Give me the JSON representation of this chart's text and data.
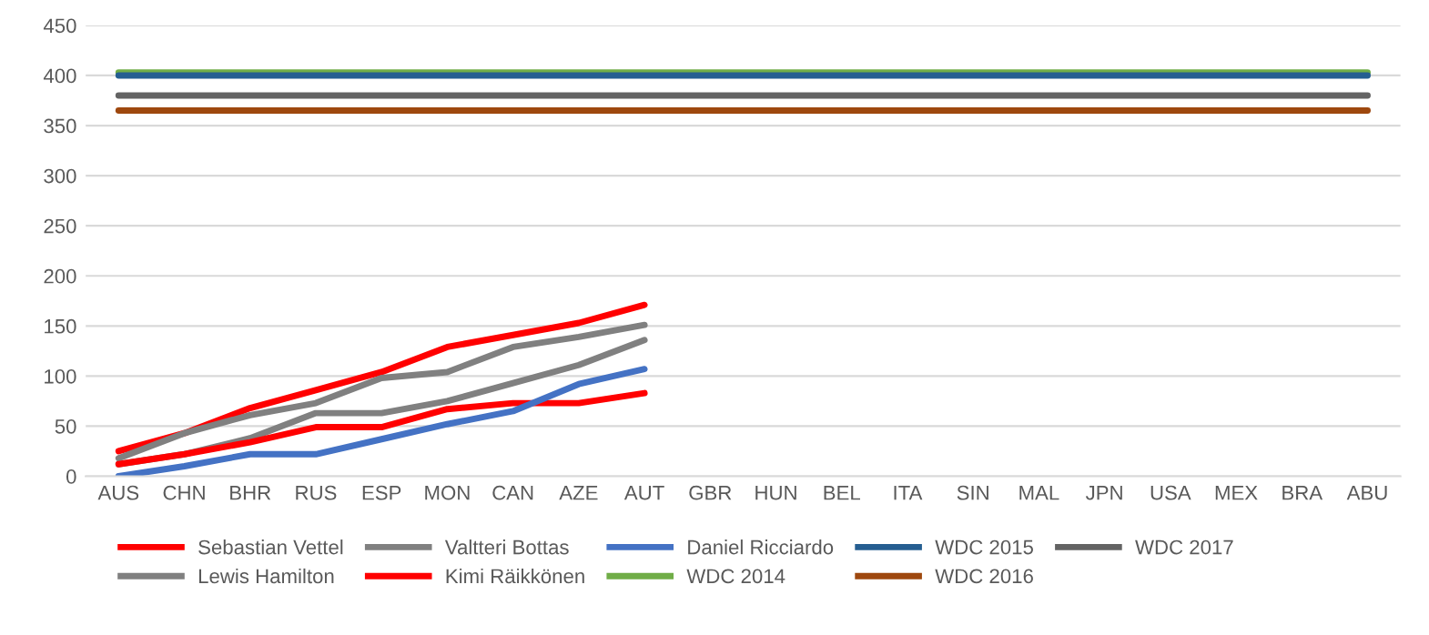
{
  "chart_data": {
    "type": "line",
    "categories": [
      "AUS",
      "CHN",
      "BHR",
      "RUS",
      "ESP",
      "MON",
      "CAN",
      "AZE",
      "AUT",
      "GBR",
      "HUN",
      "BEL",
      "ITA",
      "SIN",
      "MAL",
      "JPN",
      "USA",
      "MEX",
      "BRA",
      "ABU"
    ],
    "series": [
      {
        "name": "Sebastian Vettel",
        "color": "#ff0000",
        "values": [
          25,
          43,
          68,
          86,
          104,
          129,
          141,
          153,
          171,
          null,
          null,
          null,
          null,
          null,
          null,
          null,
          null,
          null,
          null,
          null
        ]
      },
      {
        "name": "Lewis Hamilton",
        "color": "#808080",
        "values": [
          18,
          43,
          61,
          73,
          98,
          104,
          129,
          139,
          151,
          null,
          null,
          null,
          null,
          null,
          null,
          null,
          null,
          null,
          null,
          null
        ]
      },
      {
        "name": "Valtteri Bottas",
        "color": "#808080",
        "values": [
          12,
          22,
          38,
          63,
          63,
          75,
          93,
          111,
          136,
          null,
          null,
          null,
          null,
          null,
          null,
          null,
          null,
          null,
          null,
          null
        ]
      },
      {
        "name": "Kimi Räikkönen",
        "color": "#ff0000",
        "values": [
          12,
          22,
          34,
          49,
          49,
          67,
          73,
          73,
          83,
          null,
          null,
          null,
          null,
          null,
          null,
          null,
          null,
          null,
          null,
          null
        ]
      },
      {
        "name": "Daniel Ricciardo",
        "color": "#4472c4",
        "values": [
          0,
          10,
          22,
          22,
          37,
          52,
          65,
          92,
          107,
          null,
          null,
          null,
          null,
          null,
          null,
          null,
          null,
          null,
          null,
          null
        ]
      },
      {
        "name": "WDC 2014",
        "color": "#70ad47",
        "values": [
          403,
          403,
          403,
          403,
          403,
          403,
          403,
          403,
          403,
          403,
          403,
          403,
          403,
          403,
          403,
          403,
          403,
          403,
          403,
          403
        ]
      },
      {
        "name": "WDC 2015",
        "color": "#255e91",
        "values": [
          400,
          400,
          400,
          400,
          400,
          400,
          400,
          400,
          400,
          400,
          400,
          400,
          400,
          400,
          400,
          400,
          400,
          400,
          400,
          400
        ]
      },
      {
        "name": "WDC 2016",
        "color": "#9e480e",
        "values": [
          365,
          365,
          365,
          365,
          365,
          365,
          365,
          365,
          365,
          365,
          365,
          365,
          365,
          365,
          365,
          365,
          365,
          365,
          365,
          365
        ]
      },
      {
        "name": "WDC 2017",
        "color": "#636363",
        "values": [
          380,
          380,
          380,
          380,
          380,
          380,
          380,
          380,
          380,
          380,
          380,
          380,
          380,
          380,
          380,
          380,
          380,
          380,
          380,
          380
        ]
      }
    ],
    "ylim": [
      0,
      450
    ],
    "yticks": [
      0,
      50,
      100,
      150,
      200,
      250,
      300,
      350,
      400,
      450
    ],
    "grid": "y",
    "legend": "bottom",
    "marker": "none",
    "line_style": "solid"
  }
}
